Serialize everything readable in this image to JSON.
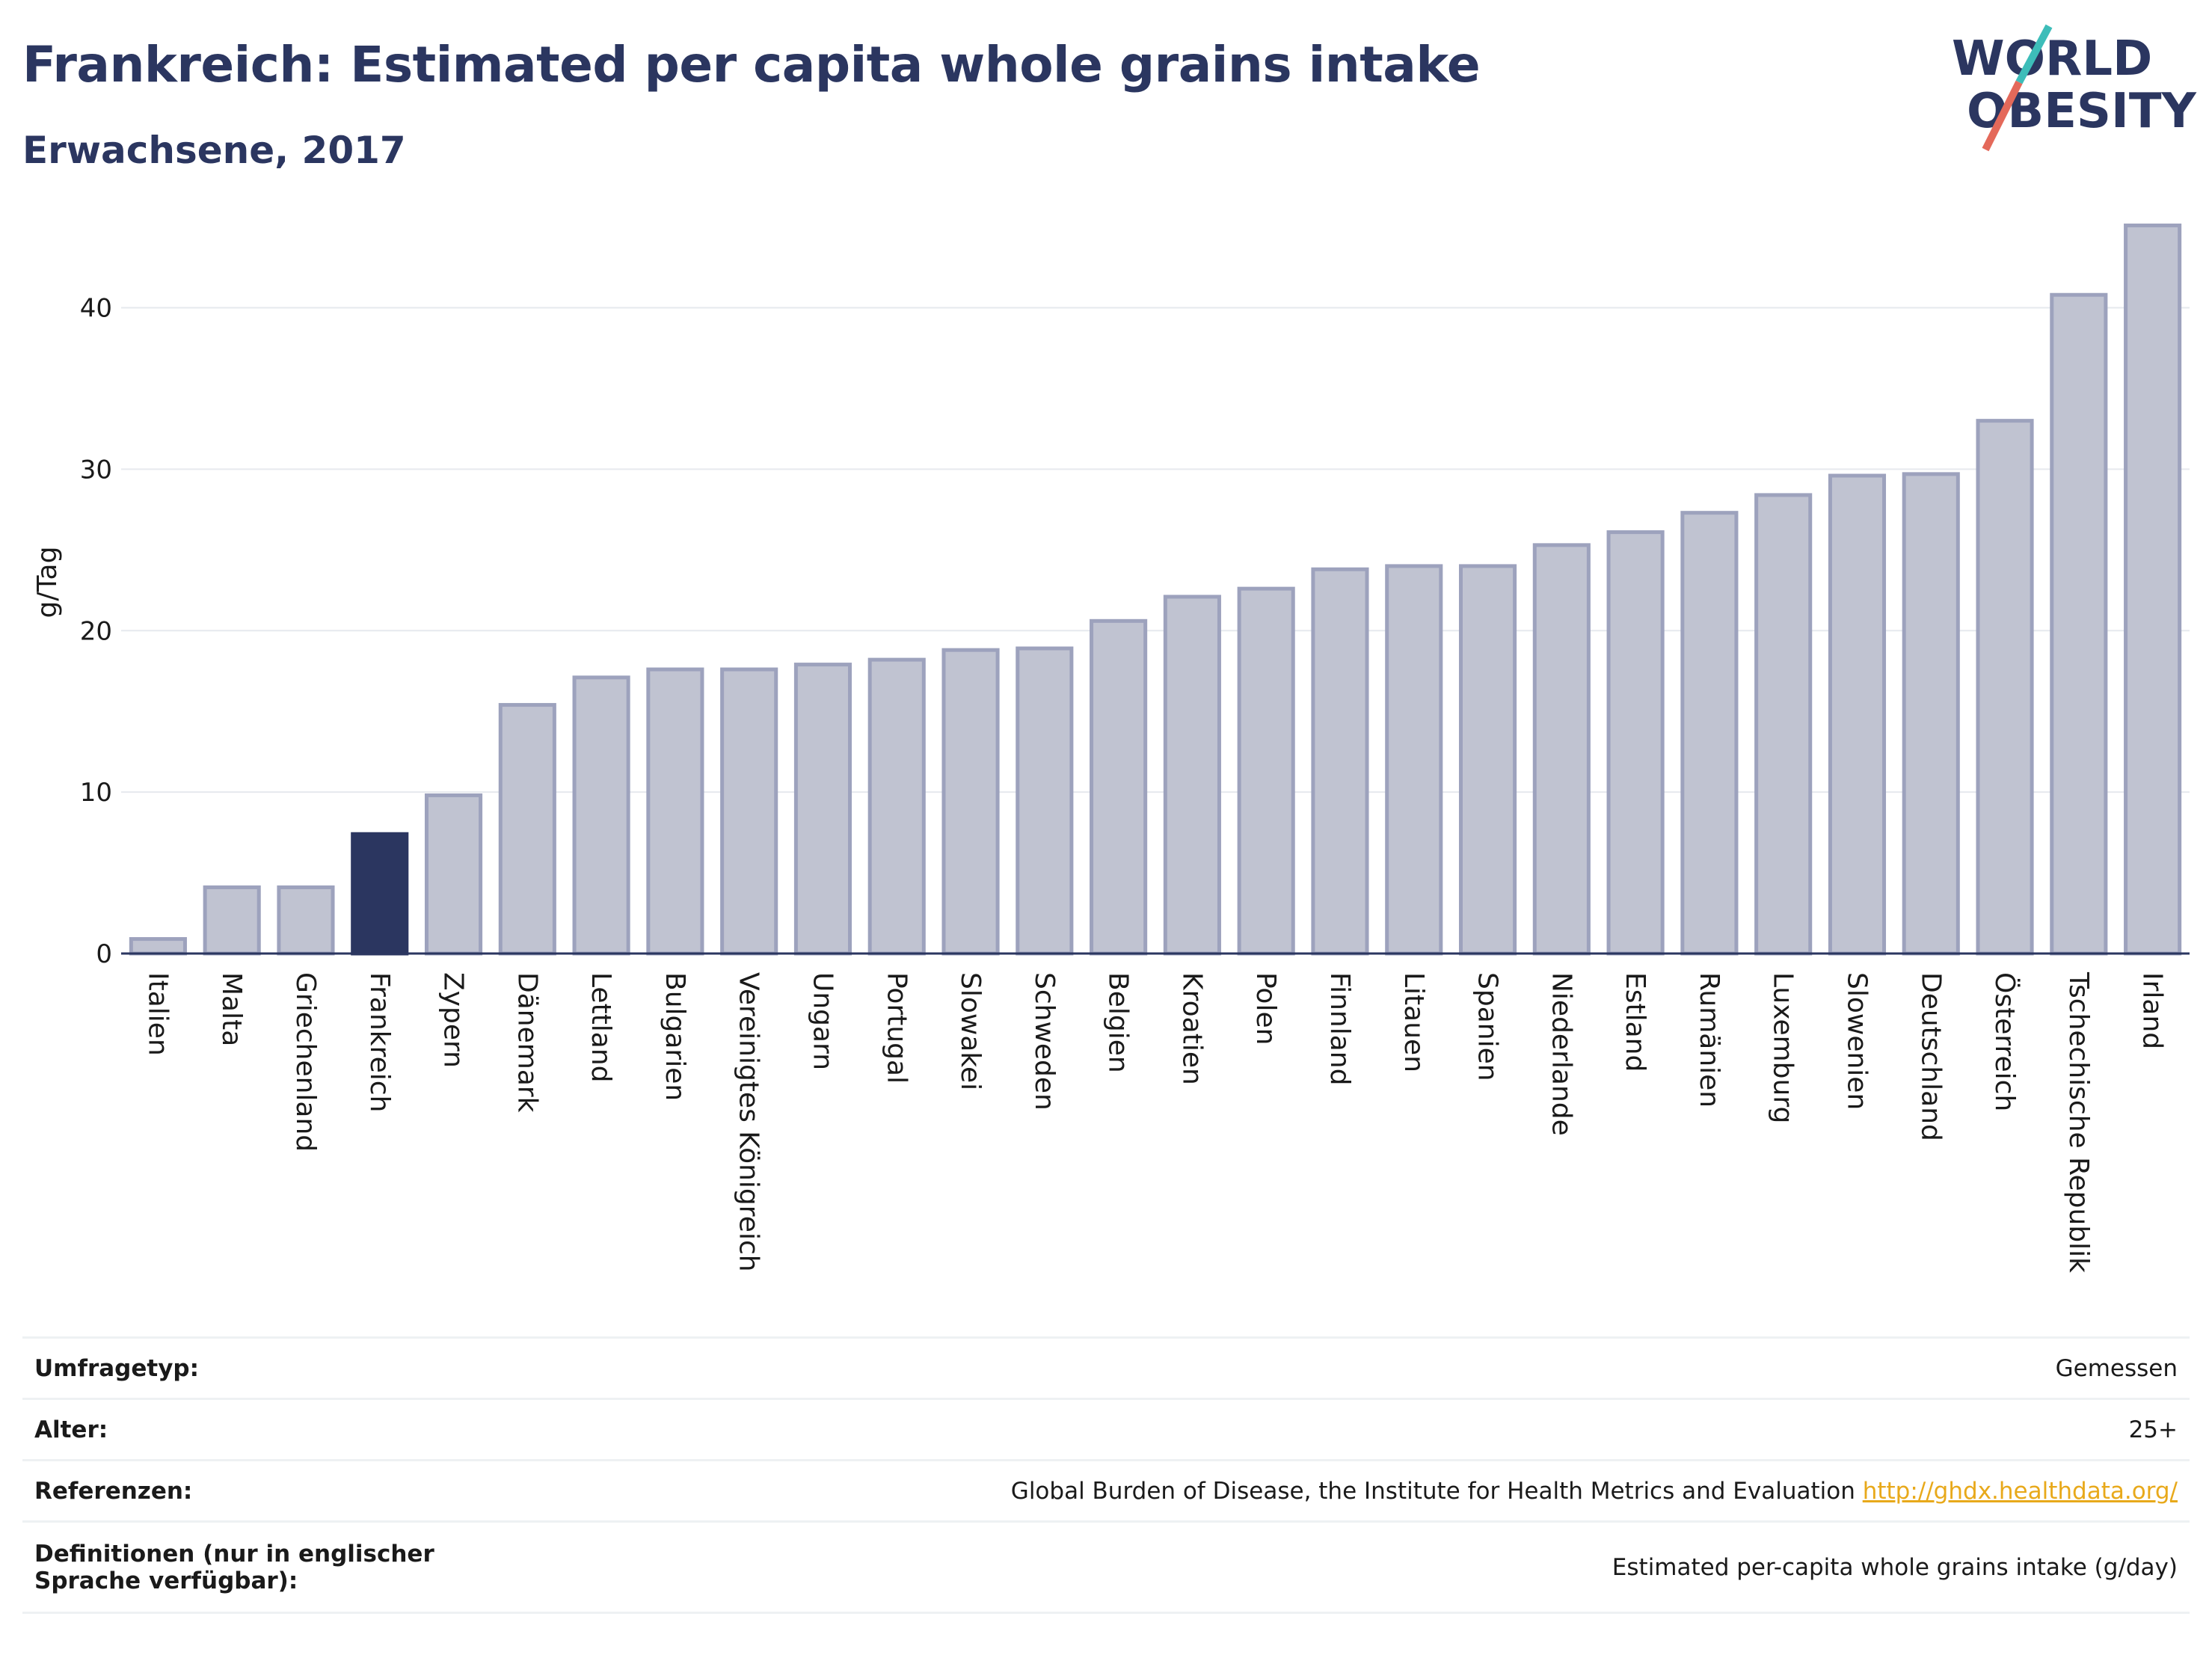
{
  "header": {
    "title": "Frankreich: Estimated per capita whole grains intake",
    "subtitle": "Erwachsene, 2017"
  },
  "logo": {
    "line1": "WORLD",
    "line2": "OBESITY",
    "colors": {
      "text": "#2b3660",
      "slash_top": "#3dbdb9",
      "slash_bottom": "#e4695a"
    }
  },
  "chart_data": {
    "type": "bar",
    "ylabel": "g/Tag",
    "ylim": [
      0,
      46
    ],
    "yticks": [
      0,
      10,
      20,
      30,
      40
    ],
    "grid": true,
    "highlight": "Frankreich",
    "colors": {
      "bar": "#c0c3d1",
      "bar_border": "#9da2bd",
      "highlight": "#2b3660"
    },
    "categories": [
      "Italien",
      "Malta",
      "Griechenland",
      "Frankreich",
      "Zypern",
      "Dänemark",
      "Lettland",
      "Bulgarien",
      "Vereinigtes Königreich",
      "Ungarn",
      "Portugal",
      "Slowakei",
      "Schweden",
      "Belgien",
      "Kroatien",
      "Polen",
      "Finnland",
      "Litauen",
      "Spanien",
      "Niederlande",
      "Estland",
      "Rumänien",
      "Luxemburg",
      "Slowenien",
      "Deutschland",
      "Österreich",
      "Tschechische Republik",
      "Irland"
    ],
    "values": [
      0.9,
      4.1,
      4.1,
      7.4,
      9.8,
      15.4,
      17.1,
      17.6,
      17.6,
      17.9,
      18.2,
      18.8,
      18.9,
      20.6,
      22.1,
      22.6,
      23.8,
      24.0,
      24.0,
      25.3,
      26.1,
      27.3,
      28.4,
      29.6,
      29.7,
      33.0,
      40.8,
      45.1
    ]
  },
  "meta": [
    {
      "key": "Umfragetyp:",
      "value": "Gemessen"
    },
    {
      "key": "Alter:",
      "value": "25+"
    },
    {
      "key": "Referenzen:",
      "value": "Global Burden of Disease, the Institute for Health Metrics and Evaluation",
      "link": "http://ghdx.healthdata.org/"
    },
    {
      "key": "Definitionen (nur in englischer Sprache verfügbar):",
      "value": "Estimated per-capita whole grains intake (g/day)"
    }
  ]
}
